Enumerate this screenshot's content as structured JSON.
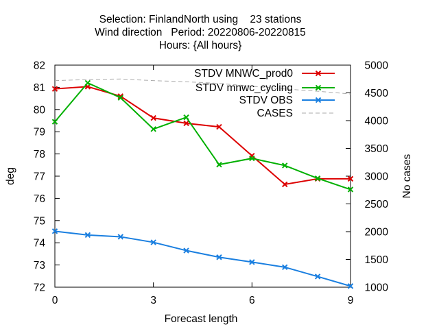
{
  "chart_data": {
    "type": "line",
    "title_lines": [
      "Selection: FinlandNorth using    23 stations",
      "Wind direction   Period: 20220806-20220815",
      "Hours: {All hours}"
    ],
    "xlabel": "Forecast length",
    "ylabel": "deg",
    "y2label": "No cases",
    "xlim": [
      0,
      9
    ],
    "ylim": [
      72,
      82
    ],
    "y2lim": [
      1000,
      5000
    ],
    "xticks": [
      0,
      3,
      6,
      9
    ],
    "yticks": [
      72,
      73,
      74,
      75,
      76,
      77,
      78,
      79,
      80,
      81,
      82
    ],
    "y2ticks": [
      1000,
      1500,
      2000,
      2500,
      3000,
      3500,
      4000,
      4500,
      5000
    ],
    "legend_position": "top-right",
    "grid": false,
    "series": [
      {
        "name": "STDV MNWC_prod0",
        "axis": "y",
        "color": "#dd0000",
        "marker": "x",
        "x": [
          0,
          1,
          2,
          3,
          4,
          5,
          6,
          7,
          8,
          9
        ],
        "values": [
          80.93,
          81.03,
          80.6,
          79.62,
          79.38,
          79.22,
          77.92,
          76.63,
          76.88,
          76.88
        ]
      },
      {
        "name": "STDV mnwc_cycling",
        "axis": "y",
        "color": "#00b000",
        "marker": "x",
        "x": [
          0,
          1,
          2,
          3,
          4,
          5,
          6,
          7,
          8,
          9
        ],
        "values": [
          79.45,
          81.2,
          80.53,
          79.12,
          79.65,
          77.52,
          77.8,
          77.48,
          76.9,
          76.4
        ]
      },
      {
        "name": "STDV OBS",
        "axis": "y",
        "color": "#1a7fe0",
        "marker": "x",
        "x": [
          0,
          1,
          2,
          3,
          4,
          5,
          6,
          7,
          8,
          9
        ],
        "values": [
          74.52,
          74.35,
          74.27,
          74.02,
          73.65,
          73.35,
          73.13,
          72.9,
          72.48,
          72.05
        ]
      },
      {
        "name": "CASES",
        "axis": "y2",
        "color": "#aaaaaa",
        "dashed": true,
        "x": [
          0,
          1,
          2,
          3,
          4,
          5,
          6,
          7,
          8,
          9
        ],
        "values": [
          4720,
          4740,
          4750,
          4720,
          4700,
          4670,
          4620,
          4570,
          4530,
          4480
        ]
      }
    ]
  }
}
